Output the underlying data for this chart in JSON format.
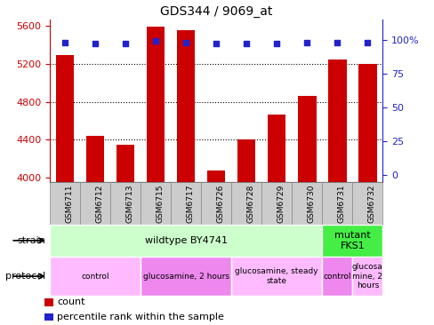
{
  "title": "GDS344 / 9069_at",
  "samples": [
    "GSM6711",
    "GSM6712",
    "GSM6713",
    "GSM6715",
    "GSM6717",
    "GSM6726",
    "GSM6728",
    "GSM6729",
    "GSM6730",
    "GSM6731",
    "GSM6732"
  ],
  "counts": [
    5290,
    4440,
    4345,
    5590,
    5560,
    4070,
    4405,
    4660,
    4860,
    5250,
    5200
  ],
  "percentiles": [
    98,
    97,
    97,
    99,
    98,
    97,
    97,
    97,
    98,
    98,
    98
  ],
  "ymin": 3950,
  "ymax": 5670,
  "yticks": [
    4000,
    4400,
    4800,
    5200,
    5600
  ],
  "right_yticks": [
    0,
    25,
    50,
    75,
    100
  ],
  "bar_color": "#cc0000",
  "dot_color": "#2222cc",
  "left_axis_color": "#cc0000",
  "right_axis_color": "#2222cc",
  "strain_groups": [
    {
      "label": "wildtype BY4741",
      "start": 0,
      "end": 9,
      "color": "#ccffcc"
    },
    {
      "label": "mutant\nFKS1",
      "start": 9,
      "end": 11,
      "color": "#44ee44"
    }
  ],
  "protocol_groups": [
    {
      "label": "control",
      "start": 0,
      "end": 3,
      "color": "#ffbbff"
    },
    {
      "label": "glucosamine, 2 hours",
      "start": 3,
      "end": 6,
      "color": "#ee88ee"
    },
    {
      "label": "glucosamine, steady\nstate",
      "start": 6,
      "end": 9,
      "color": "#ffbbff"
    },
    {
      "label": "control",
      "start": 9,
      "end": 10,
      "color": "#ee88ee"
    },
    {
      "label": "glucosa\nmine, 2\nhours",
      "start": 10,
      "end": 11,
      "color": "#ffbbff"
    }
  ],
  "legend_items": [
    {
      "label": "count",
      "color": "#cc0000",
      "marker": "s"
    },
    {
      "label": "percentile rank within the sample",
      "color": "#2222cc",
      "marker": "s"
    }
  ],
  "cell_bg": "#cccccc",
  "cell_edge": "#888888"
}
